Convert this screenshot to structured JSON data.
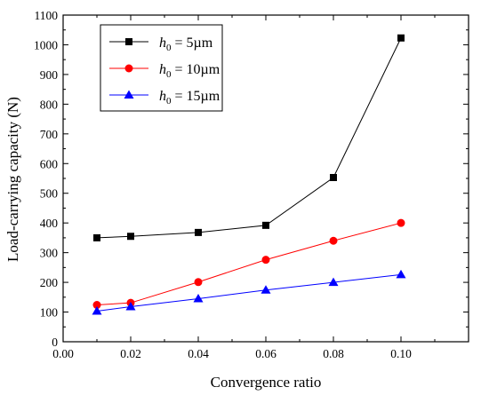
{
  "chart_data": {
    "type": "line",
    "title": "",
    "xlabel": "Convergence ratio",
    "ylabel": "Load-carrying capacity (N)",
    "xlim": [
      0.0,
      0.12
    ],
    "ylim": [
      0,
      1100
    ],
    "xticks": [
      "0.00",
      "0.02",
      "0.04",
      "0.06",
      "0.08",
      "0.10"
    ],
    "yticks": [
      "0",
      "100",
      "200",
      "300",
      "400",
      "500",
      "600",
      "700",
      "800",
      "900",
      "1000",
      "1100"
    ],
    "x": [
      0.01,
      0.02,
      0.04,
      0.06,
      0.08,
      0.1
    ],
    "grid": false,
    "legend": "top-left",
    "series": [
      {
        "label_var": "h",
        "label_sub": "0",
        "label_rest": " = 5µm",
        "color": "#000000",
        "marker": "square",
        "values": [
          350,
          355,
          368,
          392,
          553,
          1023
        ]
      },
      {
        "label_var": "h",
        "label_sub": "0",
        "label_rest": " = 10µm",
        "color": "#ff0000",
        "marker": "circle",
        "values": [
          124,
          131,
          201,
          276,
          340,
          400
        ]
      },
      {
        "label_var": "h",
        "label_sub": "0",
        "label_rest": " = 15µm",
        "color": "#0000ff",
        "marker": "triangle",
        "values": [
          103,
          118,
          145,
          174,
          200,
          226
        ]
      }
    ]
  }
}
